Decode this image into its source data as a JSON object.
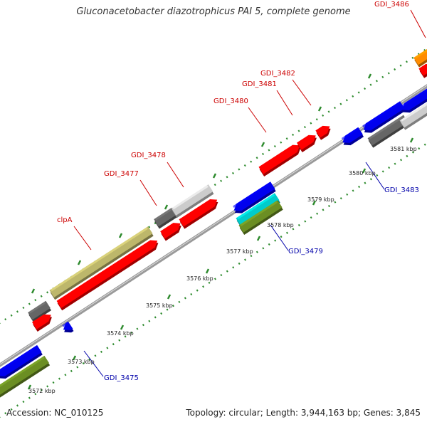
{
  "title": "Gluconacetobacter diazotrophicus PAI 5, complete genome",
  "footer": {
    "accession": "Accession: NC_010125",
    "summary": "Topology: circular; Length: 3,944,163 bp; Genes: 3,845"
  },
  "colors": {
    "backbone": "#999999",
    "tick_dots": "#2e8b2e",
    "label_red": "#cc0000",
    "label_blue": "#0000aa",
    "red": "#ff0000",
    "blue": "#0000ee",
    "gray_dark": "#666666",
    "gray_light": "#cccccc",
    "khaki": "#bdb76b",
    "olive": "#6b8e23",
    "cyan": "#00cccc",
    "orange": "#ff8c00"
  },
  "scale_ticks": [
    "3572 kbp",
    "3573 kbp",
    "3574 kbp",
    "3575 kbp",
    "3576 kbp",
    "3577 kbp",
    "3578 kbp",
    "3579 kbp",
    "3580 kbp",
    "3581 kbp"
  ],
  "gene_labels_forward": [
    "clpA",
    "GDI_3477",
    "GDI_3478",
    "GDI_3480",
    "GDI_3481",
    "GDI_3482",
    "GDI_3486"
  ],
  "gene_labels_reverse": [
    "GDI_3475",
    "GDI_3479",
    "GDI_3483"
  ]
}
